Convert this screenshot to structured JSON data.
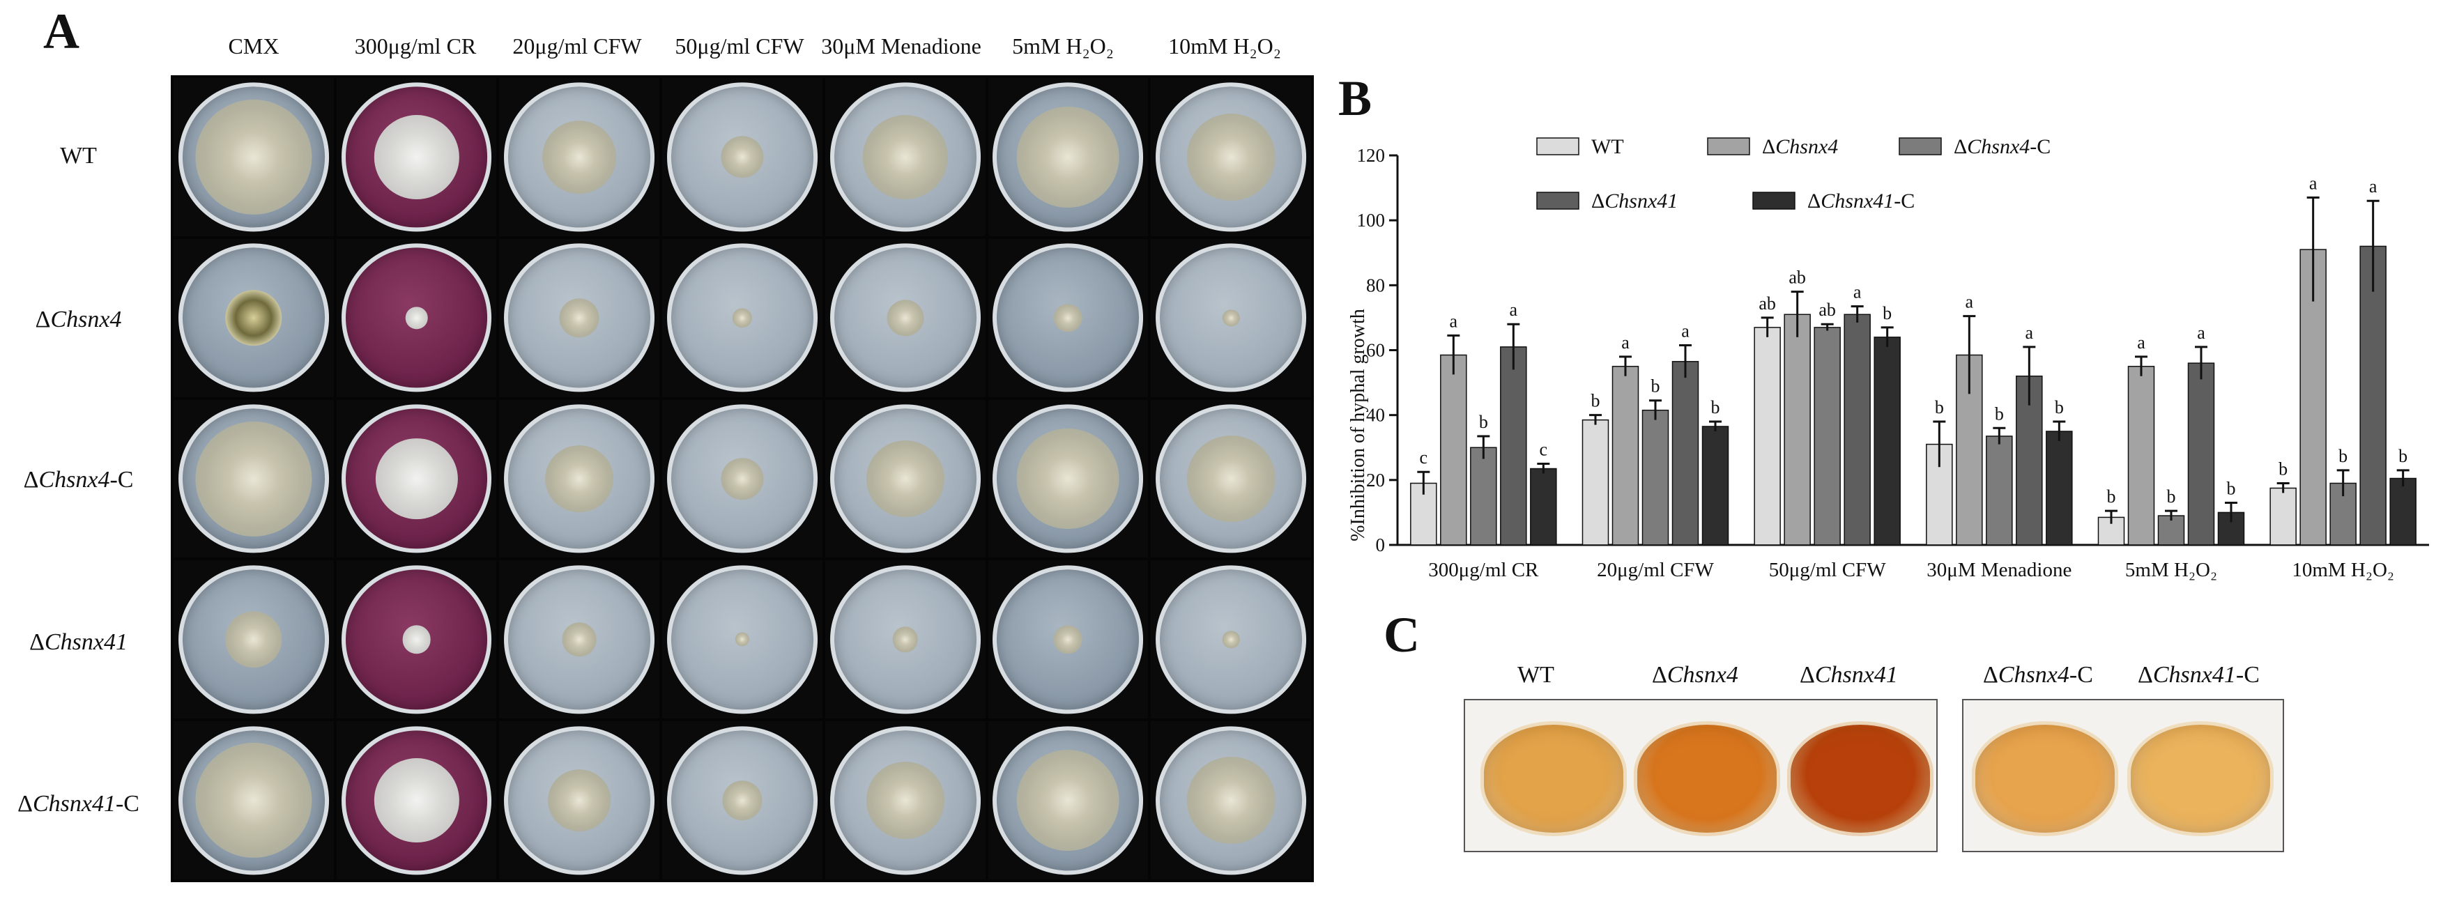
{
  "panels": {
    "a": "A",
    "b": "B",
    "c": "C"
  },
  "panel_a": {
    "columns": [
      "CMX",
      "300μg/ml CR",
      "20μg/ml CFW",
      "50μg/ml CFW",
      "30μM Menadione",
      "5mM H₂O₂",
      "10mM H₂O₂"
    ],
    "rows": [
      {
        "prefix": "",
        "italic": "",
        "suffix": "WT"
      },
      {
        "prefix": "Δ",
        "italic": "Chsnx4",
        "suffix": ""
      },
      {
        "prefix": "Δ",
        "italic": "Chsnx4",
        "suffix": "-C"
      },
      {
        "prefix": "Δ",
        "italic": "Chsnx41",
        "suffix": ""
      },
      {
        "prefix": "Δ",
        "italic": "Chsnx41",
        "suffix": "-C"
      }
    ],
    "colony_size_fraction": [
      [
        0.82,
        0.6,
        0.52,
        0.3,
        0.6,
        0.72,
        0.62
      ],
      [
        0.4,
        0.16,
        0.28,
        0.14,
        0.26,
        0.2,
        0.12
      ],
      [
        0.82,
        0.58,
        0.48,
        0.3,
        0.55,
        0.72,
        0.62
      ],
      [
        0.4,
        0.2,
        0.24,
        0.1,
        0.18,
        0.2,
        0.12
      ],
      [
        0.82,
        0.6,
        0.44,
        0.28,
        0.55,
        0.72,
        0.62
      ]
    ]
  },
  "chart_data": {
    "type": "bar",
    "title": "",
    "xlabel": "",
    "ylabel": "%Inhibition of hyphal growth",
    "ylim": [
      0,
      120
    ],
    "yticks": [
      0,
      20,
      40,
      60,
      80,
      100,
      120
    ],
    "categories": [
      "300μg/ml CR",
      "20μg/ml CFW",
      "50μg/ml CFW",
      "30μM Menadione",
      "5mM H₂O₂",
      "10mM H₂O₂"
    ],
    "series": [
      {
        "name": "WT",
        "name_prefix": "",
        "name_italic": "",
        "name_suffix": "WT",
        "color": "#dcdcdc",
        "values": [
          19,
          38.5,
          67,
          31,
          8.5,
          17.5
        ],
        "errors": [
          3.5,
          1.5,
          3,
          7,
          2,
          1.5
        ],
        "letters": [
          "c",
          "b",
          "ab",
          "b",
          "b",
          "b"
        ]
      },
      {
        "name": "ΔChsnx4",
        "name_prefix": "Δ",
        "name_italic": "Chsnx4",
        "name_suffix": "",
        "color": "#a3a3a3",
        "values": [
          58.5,
          55,
          71,
          58.5,
          55,
          91
        ],
        "errors": [
          6,
          3,
          7,
          12,
          3,
          16
        ],
        "letters": [
          "a",
          "a",
          "ab",
          "a",
          "a",
          "a"
        ]
      },
      {
        "name": "ΔChsnx4-C",
        "name_prefix": "Δ",
        "name_italic": "Chsnx4",
        "name_suffix": "-C",
        "color": "#7c7c7c",
        "values": [
          30,
          41.5,
          67,
          33.5,
          9,
          19
        ],
        "errors": [
          3.5,
          3,
          1,
          2.5,
          1.5,
          4
        ],
        "letters": [
          "b",
          "b",
          "ab",
          "b",
          "b",
          "b"
        ]
      },
      {
        "name": "ΔChsnx41",
        "name_prefix": "Δ",
        "name_italic": "Chsnx41",
        "name_suffix": "",
        "color": "#5e5e5e",
        "values": [
          61,
          56.5,
          71,
          52,
          56,
          92
        ],
        "errors": [
          7,
          5,
          2.5,
          9,
          5,
          14
        ],
        "letters": [
          "a",
          "a",
          "a",
          "a",
          "a",
          "a"
        ]
      },
      {
        "name": "ΔChsnx41-C",
        "name_prefix": "Δ",
        "name_italic": "Chsnx41",
        "name_suffix": "-C",
        "color": "#2e2e2e",
        "values": [
          23.5,
          36.5,
          64,
          35,
          10,
          20.5
        ],
        "errors": [
          1.5,
          1.5,
          3,
          3,
          3,
          2.5
        ],
        "letters": [
          "c",
          "b",
          "b",
          "b",
          "b",
          "b"
        ]
      }
    ]
  },
  "panel_c": {
    "labels": [
      {
        "prefix": "",
        "italic": "",
        "suffix": "WT"
      },
      {
        "prefix": "Δ",
        "italic": "Chsnx4",
        "suffix": ""
      },
      {
        "prefix": "Δ",
        "italic": "Chsnx41",
        "suffix": ""
      },
      {
        "prefix": "Δ",
        "italic": "Chsnx4",
        "suffix": "-C"
      },
      {
        "prefix": "Δ",
        "italic": "Chsnx41",
        "suffix": "-C"
      }
    ],
    "well_colors": [
      "#e2a349",
      "#d8761e",
      "#b8410b",
      "#e7a44d",
      "#eab35c"
    ]
  }
}
